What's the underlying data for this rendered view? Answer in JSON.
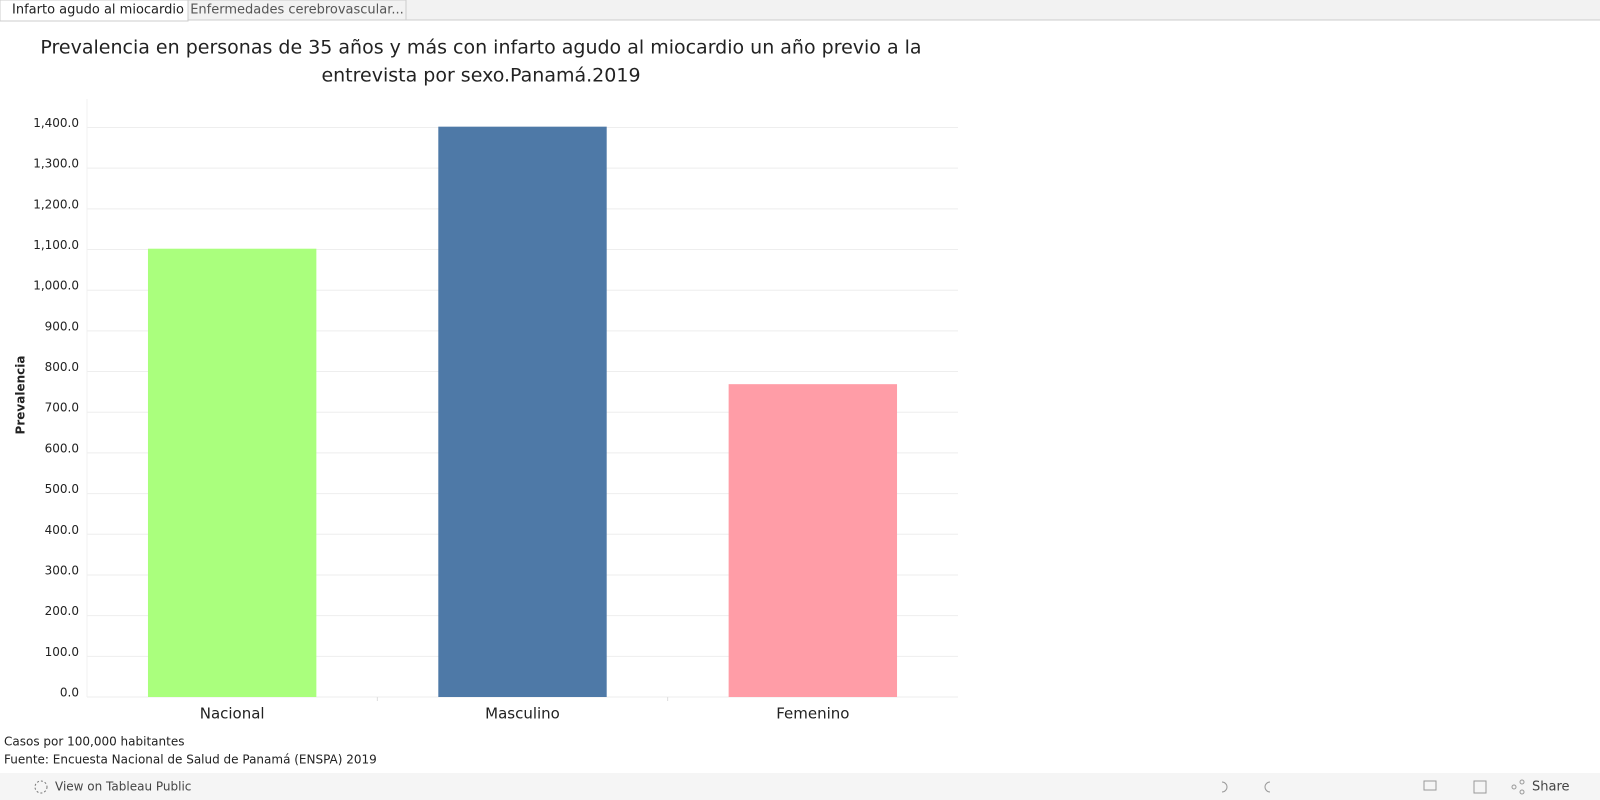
{
  "tabs": [
    "Infarto agudo al miocardio",
    "Enfermedades cerebrovascular..."
  ],
  "chart_data": {
    "type": "bar",
    "title": [
      "Prevalencia en personas de 35 años y más con infarto agudo al miocardio un año previo a la",
      "entrevista por sexo.Panamá.2019"
    ],
    "y_label": "Prevalencia",
    "categories": [
      "Nacional",
      "Masculino",
      "Femenino"
    ],
    "values": [
      1102,
      1402,
      769
    ],
    "colors": [
      "#aaff7d",
      "#4e79a7",
      "#ff9da7"
    ],
    "ylim": [
      0,
      1470
    ],
    "yticks": [
      {
        "value": 0,
        "label": "0.0"
      },
      {
        "value": 100,
        "label": "100.0"
      },
      {
        "value": 200,
        "label": "200.0"
      },
      {
        "value": 300,
        "label": "300.0"
      },
      {
        "value": 400,
        "label": "400.0"
      },
      {
        "value": 500,
        "label": "500.0"
      },
      {
        "value": 600,
        "label": "600.0"
      },
      {
        "value": 700,
        "label": "700.0"
      },
      {
        "value": 800,
        "label": "800.0"
      },
      {
        "value": 900,
        "label": "900.0"
      },
      {
        "value": 1000,
        "label": "1,000.0"
      },
      {
        "value": 1100,
        "label": "1,100.0"
      },
      {
        "value": 1200,
        "label": "1,200.0"
      },
      {
        "value": 1300,
        "label": "1,300.0"
      },
      {
        "value": 1400,
        "label": "1,400.0"
      }
    ],
    "grid": true
  },
  "notes": [
    "Casos por 100,000 habitantes",
    "Fuente: Encuesta Nacional de Salud de Panamá (ENSPA) 2019"
  ],
  "toolbar": {
    "view": "View on Tableau Public",
    "share": "Share"
  }
}
